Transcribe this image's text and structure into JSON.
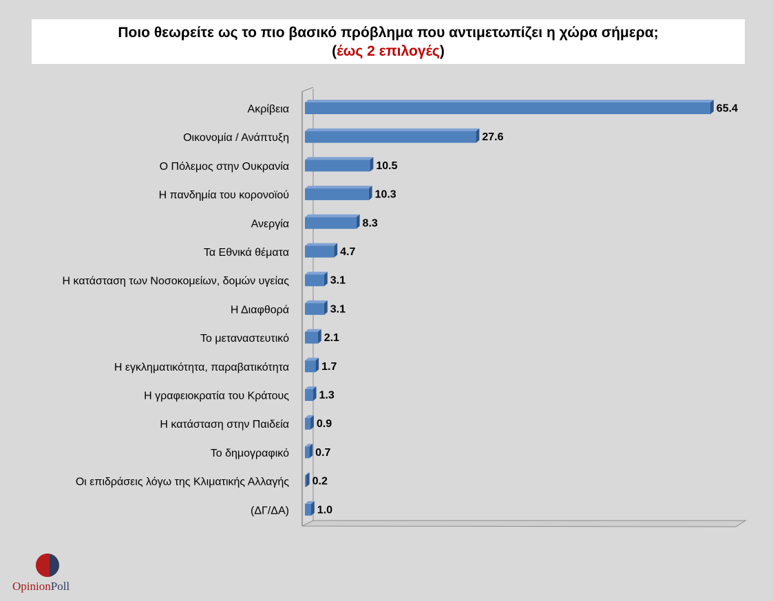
{
  "title": {
    "line1": "Ποιο θεωρείτε ως το πιο βασικό πρόβλημα που αντιμετωπίζει η χώρα σήμερα;",
    "paren_open": "(",
    "accent": "έως 2 επιλογές",
    "paren_close": ")"
  },
  "logo": {
    "part1": "Opinion",
    "part2": "Poll"
  },
  "colors": {
    "bar": "#4f81bd",
    "bar_top": "#7fa2d3",
    "bar_side": "#2f5688",
    "background": "#d9d9d9",
    "accent": "#c00000"
  },
  "chart_data": {
    "type": "bar",
    "orientation": "horizontal",
    "categories": [
      "Ακρίβεια",
      "Οικονομία / Ανάπτυξη",
      "Ο Πόλεμος στην Ουκρανία",
      "Η πανδημία του κορονοϊού",
      "Ανεργία",
      "Τα Εθνικά θέματα",
      "Η κατάσταση των Νοσοκομείων, δομών υγείας",
      "Η Διαφθορά",
      "Το μεταναστευτικό",
      "Η εγκληματικότητα, παραβατικότητα",
      "Η γραφειοκρατία του Κράτους",
      "Η κατάσταση στην Παιδεία",
      "Το δημογραφικό",
      "Οι επιδράσεις λόγω της Κλιματικής Αλλαγής",
      "(ΔΓ/ΔΑ)"
    ],
    "values": [
      65.4,
      27.6,
      10.5,
      10.3,
      8.3,
      4.7,
      3.1,
      3.1,
      2.1,
      1.7,
      1.3,
      0.9,
      0.7,
      0.2,
      1.0
    ],
    "value_labels": [
      "65.4",
      "27.6",
      "10.5",
      "10.3",
      "8.3",
      "4.7",
      "3.1",
      "3.1",
      "2.1",
      "1.7",
      "1.3",
      "0.9",
      "0.7",
      "0.2",
      "1.0"
    ],
    "xlim": [
      0,
      70
    ],
    "grid": false,
    "legend": "none"
  }
}
